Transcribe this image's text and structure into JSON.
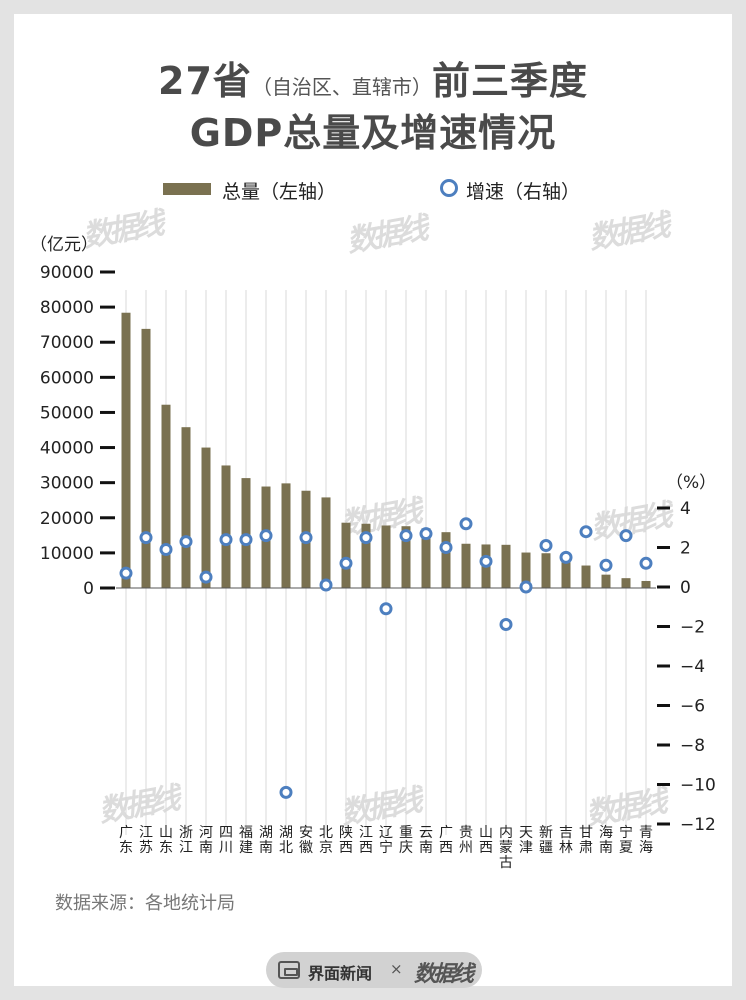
{
  "title": {
    "line1_main": "27省",
    "line1_paren": "（自治区、直辖市）",
    "line1_end": "前三季度",
    "line2": "GDP总量及增速情况"
  },
  "legend": {
    "bar_label": "总量（左轴）",
    "dot_label": "增速（右轴）"
  },
  "watermark_text": "数据线",
  "source": "数据来源：各地统计局",
  "footer": {
    "brand": "界面新闻",
    "times": "×",
    "logo": "数据线"
  },
  "colors": {
    "bar": "#7a7150",
    "dot": "#4d7fbf",
    "grid": "#d8d8d8",
    "title": "#4a4a4a"
  },
  "chart_data": {
    "type": "bar",
    "ylabel_left": "（亿元）",
    "ylabel_right": "（%）",
    "left_ticks": [
      "90000",
      "80000",
      "70000",
      "60000",
      "50000",
      "40000",
      "30000",
      "20000",
      "10000",
      "0"
    ],
    "right_ticks": [
      "4",
      "2",
      "0",
      "−2",
      "−4",
      "−6",
      "−8",
      "−10",
      "−12"
    ],
    "left_ylim": [
      0,
      90000
    ],
    "right_ylim": [
      -12,
      4
    ],
    "grid": true,
    "legend_position": "top",
    "categories": [
      "广东",
      "江苏",
      "山东",
      "浙江",
      "河南",
      "四川",
      "福建",
      "湖南",
      "湖北",
      "安徽",
      "北京",
      "陕西",
      "江西",
      "辽宁",
      "重庆",
      "云南",
      "广西",
      "贵州",
      "山西",
      "内蒙古",
      "天津",
      "新疆",
      "吉林",
      "甘肃",
      "海南",
      "宁夏",
      "青海"
    ],
    "series": [
      {
        "name": "总量（左轴）",
        "type": "bar",
        "axis": "left",
        "values": [
          78400,
          73800,
          52200,
          45800,
          40000,
          34900,
          31300,
          28900,
          29800,
          27700,
          25800,
          18600,
          18300,
          17800,
          17600,
          17000,
          15900,
          12600,
          12400,
          12300,
          10100,
          9900,
          8700,
          6400,
          3800,
          2800,
          2000
        ]
      },
      {
        "name": "增速（右轴）",
        "type": "scatter",
        "axis": "right",
        "values": [
          0.7,
          2.5,
          1.9,
          2.3,
          0.5,
          2.4,
          2.4,
          2.6,
          -10.4,
          2.5,
          0.1,
          1.2,
          2.5,
          -1.1,
          2.6,
          2.7,
          2.0,
          3.2,
          1.3,
          -1.9,
          0.0,
          2.1,
          1.5,
          2.8,
          1.1,
          2.6,
          1.2
        ]
      }
    ]
  }
}
